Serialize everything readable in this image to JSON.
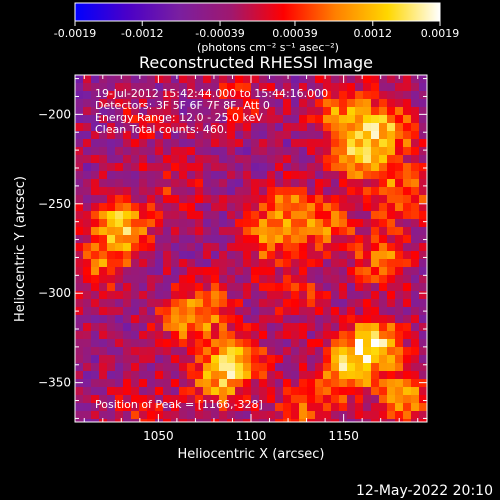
{
  "chart_data": {
    "type": "heatmap",
    "title": "Reconstructed RHESSI Image",
    "xlabel": "Heliocentric X (arcsec)",
    "ylabel": "Heliocentric Y (arcsec)",
    "xlim": [
      1005,
      1195
    ],
    "ylim": [
      -372,
      -178
    ],
    "x_ticks": [
      "1050",
      "1100",
      "1150"
    ],
    "x_tick_values": [
      1050,
      1100,
      1150
    ],
    "y_ticks": [
      "-200",
      "-250",
      "-300",
      "-350"
    ],
    "y_tick_values": [
      -200,
      -250,
      -300,
      -350
    ],
    "colorbar": {
      "ticks": [
        "-0.0019",
        "-0.0012",
        "-0.00039",
        "0.00039",
        "0.0012",
        "0.0019"
      ],
      "tick_values": [
        -0.0019,
        -0.0012,
        -0.00039,
        0.00039,
        0.0012,
        0.0019
      ],
      "range": [
        -0.0019,
        0.0019
      ],
      "unit_label": "(photons cm⁻² s⁻¹ asec⁻²)",
      "colors": [
        "#0000ff",
        "#4a00c8",
        "#7a1fa0",
        "#a0186e",
        "#ff0000",
        "#ff8000",
        "#ffd700",
        "#ffffff"
      ]
    },
    "info_lines": [
      "19-Jul-2012 15:42:44.000 to 15:44:16.000",
      "Detectors: 3F 5F 6F 7F 8F, Att 0",
      "Energy Range: 12.0 - 25.0 keV",
      "Clean     Total counts: 460."
    ],
    "peak_label": "Position of Peak = [1166,-328]",
    "peak": [
      1166,
      -328
    ],
    "grid": false,
    "hotspots": [
      {
        "x": 1030,
        "y": -263,
        "value": 0.0017
      },
      {
        "x": 1020,
        "y": -285,
        "value": 0.0009
      },
      {
        "x": 1058,
        "y": -240,
        "value": 0.0006
      },
      {
        "x": 1092,
        "y": -338,
        "value": 0.0014
      },
      {
        "x": 1080,
        "y": -350,
        "value": 0.001
      },
      {
        "x": 1075,
        "y": -308,
        "value": 0.001
      },
      {
        "x": 1062,
        "y": -318,
        "value": 0.0008
      },
      {
        "x": 1118,
        "y": -252,
        "value": 0.0011
      },
      {
        "x": 1108,
        "y": -272,
        "value": 0.0009
      },
      {
        "x": 1125,
        "y": -300,
        "value": 0.0007
      },
      {
        "x": 1140,
        "y": -262,
        "value": 0.001
      },
      {
        "x": 1158,
        "y": -222,
        "value": 0.0014
      },
      {
        "x": 1175,
        "y": -208,
        "value": 0.0013
      },
      {
        "x": 1180,
        "y": -245,
        "value": 0.0012
      },
      {
        "x": 1150,
        "y": -198,
        "value": 0.0012
      },
      {
        "x": 1170,
        "y": -280,
        "value": 0.0011
      },
      {
        "x": 1166,
        "y": -328,
        "value": 0.0019
      },
      {
        "x": 1150,
        "y": -345,
        "value": 0.0015
      },
      {
        "x": 1185,
        "y": -360,
        "value": 0.0013
      },
      {
        "x": 1125,
        "y": -368,
        "value": 0.0009
      },
      {
        "x": 1040,
        "y": -365,
        "value": 0.0005
      },
      {
        "x": 1095,
        "y": -190,
        "value": 0.0006
      },
      {
        "x": 1040,
        "y": -205,
        "value": 0.0004
      }
    ]
  },
  "footer_date": "12-May-2022 20:10"
}
